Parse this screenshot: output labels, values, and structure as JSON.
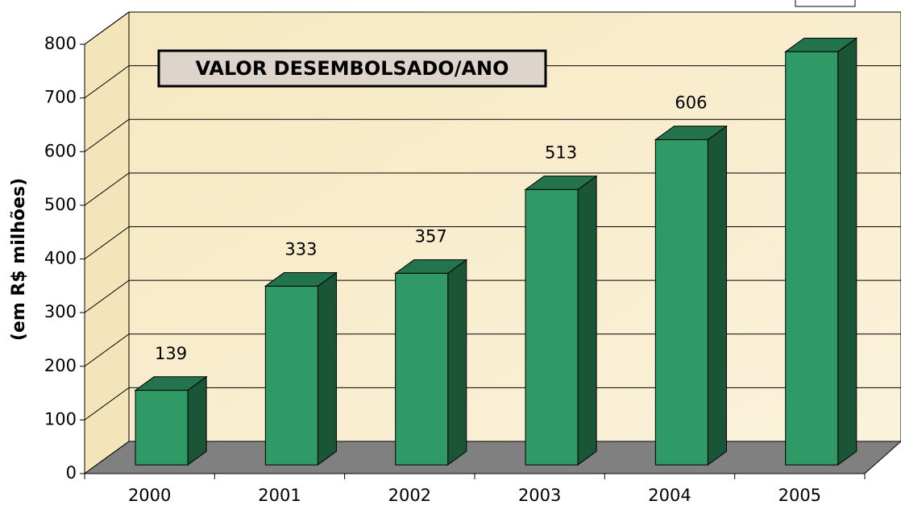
{
  "chart_data": {
    "type": "bar3d",
    "title": "VALOR DESEMBOLSADO/ANO",
    "ylabel": "(em R$ milhões)",
    "categories": [
      "2000",
      "2001",
      "2002",
      "2003",
      "2004",
      "2005"
    ],
    "values": [
      139,
      333,
      357,
      513,
      606,
      770
    ],
    "value_labels": [
      "139",
      "333",
      "357",
      "513",
      "606",
      null
    ],
    "color": "#2f9a66",
    "ylim": [
      0,
      800
    ],
    "yticks": [
      0,
      100,
      200,
      300,
      400,
      500,
      600,
      700,
      800
    ],
    "grid": true
  }
}
